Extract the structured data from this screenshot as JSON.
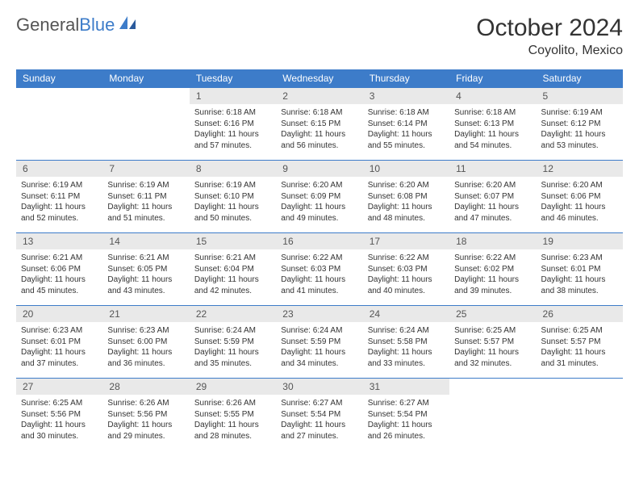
{
  "logo": {
    "part1": "General",
    "part2": "Blue"
  },
  "title": "October 2024",
  "subtitle": "Coyolito, Mexico",
  "colors": {
    "header_bg": "#3d7cc9",
    "header_text": "#ffffff",
    "daynum_bg": "#e9e9e9",
    "daynum_text": "#555555",
    "border": "#3d7cc9",
    "body_text": "#333333"
  },
  "day_headers": [
    "Sunday",
    "Monday",
    "Tuesday",
    "Wednesday",
    "Thursday",
    "Friday",
    "Saturday"
  ],
  "weeks": [
    [
      {
        "day": "",
        "sunrise": "",
        "sunset": "",
        "daylight": "",
        "empty": true
      },
      {
        "day": "",
        "sunrise": "",
        "sunset": "",
        "daylight": "",
        "empty": true
      },
      {
        "day": "1",
        "sunrise": "Sunrise: 6:18 AM",
        "sunset": "Sunset: 6:16 PM",
        "daylight": "Daylight: 11 hours and 57 minutes."
      },
      {
        "day": "2",
        "sunrise": "Sunrise: 6:18 AM",
        "sunset": "Sunset: 6:15 PM",
        "daylight": "Daylight: 11 hours and 56 minutes."
      },
      {
        "day": "3",
        "sunrise": "Sunrise: 6:18 AM",
        "sunset": "Sunset: 6:14 PM",
        "daylight": "Daylight: 11 hours and 55 minutes."
      },
      {
        "day": "4",
        "sunrise": "Sunrise: 6:18 AM",
        "sunset": "Sunset: 6:13 PM",
        "daylight": "Daylight: 11 hours and 54 minutes."
      },
      {
        "day": "5",
        "sunrise": "Sunrise: 6:19 AM",
        "sunset": "Sunset: 6:12 PM",
        "daylight": "Daylight: 11 hours and 53 minutes."
      }
    ],
    [
      {
        "day": "6",
        "sunrise": "Sunrise: 6:19 AM",
        "sunset": "Sunset: 6:11 PM",
        "daylight": "Daylight: 11 hours and 52 minutes."
      },
      {
        "day": "7",
        "sunrise": "Sunrise: 6:19 AM",
        "sunset": "Sunset: 6:11 PM",
        "daylight": "Daylight: 11 hours and 51 minutes."
      },
      {
        "day": "8",
        "sunrise": "Sunrise: 6:19 AM",
        "sunset": "Sunset: 6:10 PM",
        "daylight": "Daylight: 11 hours and 50 minutes."
      },
      {
        "day": "9",
        "sunrise": "Sunrise: 6:20 AM",
        "sunset": "Sunset: 6:09 PM",
        "daylight": "Daylight: 11 hours and 49 minutes."
      },
      {
        "day": "10",
        "sunrise": "Sunrise: 6:20 AM",
        "sunset": "Sunset: 6:08 PM",
        "daylight": "Daylight: 11 hours and 48 minutes."
      },
      {
        "day": "11",
        "sunrise": "Sunrise: 6:20 AM",
        "sunset": "Sunset: 6:07 PM",
        "daylight": "Daylight: 11 hours and 47 minutes."
      },
      {
        "day": "12",
        "sunrise": "Sunrise: 6:20 AM",
        "sunset": "Sunset: 6:06 PM",
        "daylight": "Daylight: 11 hours and 46 minutes."
      }
    ],
    [
      {
        "day": "13",
        "sunrise": "Sunrise: 6:21 AM",
        "sunset": "Sunset: 6:06 PM",
        "daylight": "Daylight: 11 hours and 45 minutes."
      },
      {
        "day": "14",
        "sunrise": "Sunrise: 6:21 AM",
        "sunset": "Sunset: 6:05 PM",
        "daylight": "Daylight: 11 hours and 43 minutes."
      },
      {
        "day": "15",
        "sunrise": "Sunrise: 6:21 AM",
        "sunset": "Sunset: 6:04 PM",
        "daylight": "Daylight: 11 hours and 42 minutes."
      },
      {
        "day": "16",
        "sunrise": "Sunrise: 6:22 AM",
        "sunset": "Sunset: 6:03 PM",
        "daylight": "Daylight: 11 hours and 41 minutes."
      },
      {
        "day": "17",
        "sunrise": "Sunrise: 6:22 AM",
        "sunset": "Sunset: 6:03 PM",
        "daylight": "Daylight: 11 hours and 40 minutes."
      },
      {
        "day": "18",
        "sunrise": "Sunrise: 6:22 AM",
        "sunset": "Sunset: 6:02 PM",
        "daylight": "Daylight: 11 hours and 39 minutes."
      },
      {
        "day": "19",
        "sunrise": "Sunrise: 6:23 AM",
        "sunset": "Sunset: 6:01 PM",
        "daylight": "Daylight: 11 hours and 38 minutes."
      }
    ],
    [
      {
        "day": "20",
        "sunrise": "Sunrise: 6:23 AM",
        "sunset": "Sunset: 6:01 PM",
        "daylight": "Daylight: 11 hours and 37 minutes."
      },
      {
        "day": "21",
        "sunrise": "Sunrise: 6:23 AM",
        "sunset": "Sunset: 6:00 PM",
        "daylight": "Daylight: 11 hours and 36 minutes."
      },
      {
        "day": "22",
        "sunrise": "Sunrise: 6:24 AM",
        "sunset": "Sunset: 5:59 PM",
        "daylight": "Daylight: 11 hours and 35 minutes."
      },
      {
        "day": "23",
        "sunrise": "Sunrise: 6:24 AM",
        "sunset": "Sunset: 5:59 PM",
        "daylight": "Daylight: 11 hours and 34 minutes."
      },
      {
        "day": "24",
        "sunrise": "Sunrise: 6:24 AM",
        "sunset": "Sunset: 5:58 PM",
        "daylight": "Daylight: 11 hours and 33 minutes."
      },
      {
        "day": "25",
        "sunrise": "Sunrise: 6:25 AM",
        "sunset": "Sunset: 5:57 PM",
        "daylight": "Daylight: 11 hours and 32 minutes."
      },
      {
        "day": "26",
        "sunrise": "Sunrise: 6:25 AM",
        "sunset": "Sunset: 5:57 PM",
        "daylight": "Daylight: 11 hours and 31 minutes."
      }
    ],
    [
      {
        "day": "27",
        "sunrise": "Sunrise: 6:25 AM",
        "sunset": "Sunset: 5:56 PM",
        "daylight": "Daylight: 11 hours and 30 minutes."
      },
      {
        "day": "28",
        "sunrise": "Sunrise: 6:26 AM",
        "sunset": "Sunset: 5:56 PM",
        "daylight": "Daylight: 11 hours and 29 minutes."
      },
      {
        "day": "29",
        "sunrise": "Sunrise: 6:26 AM",
        "sunset": "Sunset: 5:55 PM",
        "daylight": "Daylight: 11 hours and 28 minutes."
      },
      {
        "day": "30",
        "sunrise": "Sunrise: 6:27 AM",
        "sunset": "Sunset: 5:54 PM",
        "daylight": "Daylight: 11 hours and 27 minutes."
      },
      {
        "day": "31",
        "sunrise": "Sunrise: 6:27 AM",
        "sunset": "Sunset: 5:54 PM",
        "daylight": "Daylight: 11 hours and 26 minutes."
      },
      {
        "day": "",
        "sunrise": "",
        "sunset": "",
        "daylight": "",
        "empty": true
      },
      {
        "day": "",
        "sunrise": "",
        "sunset": "",
        "daylight": "",
        "empty": true
      }
    ]
  ]
}
